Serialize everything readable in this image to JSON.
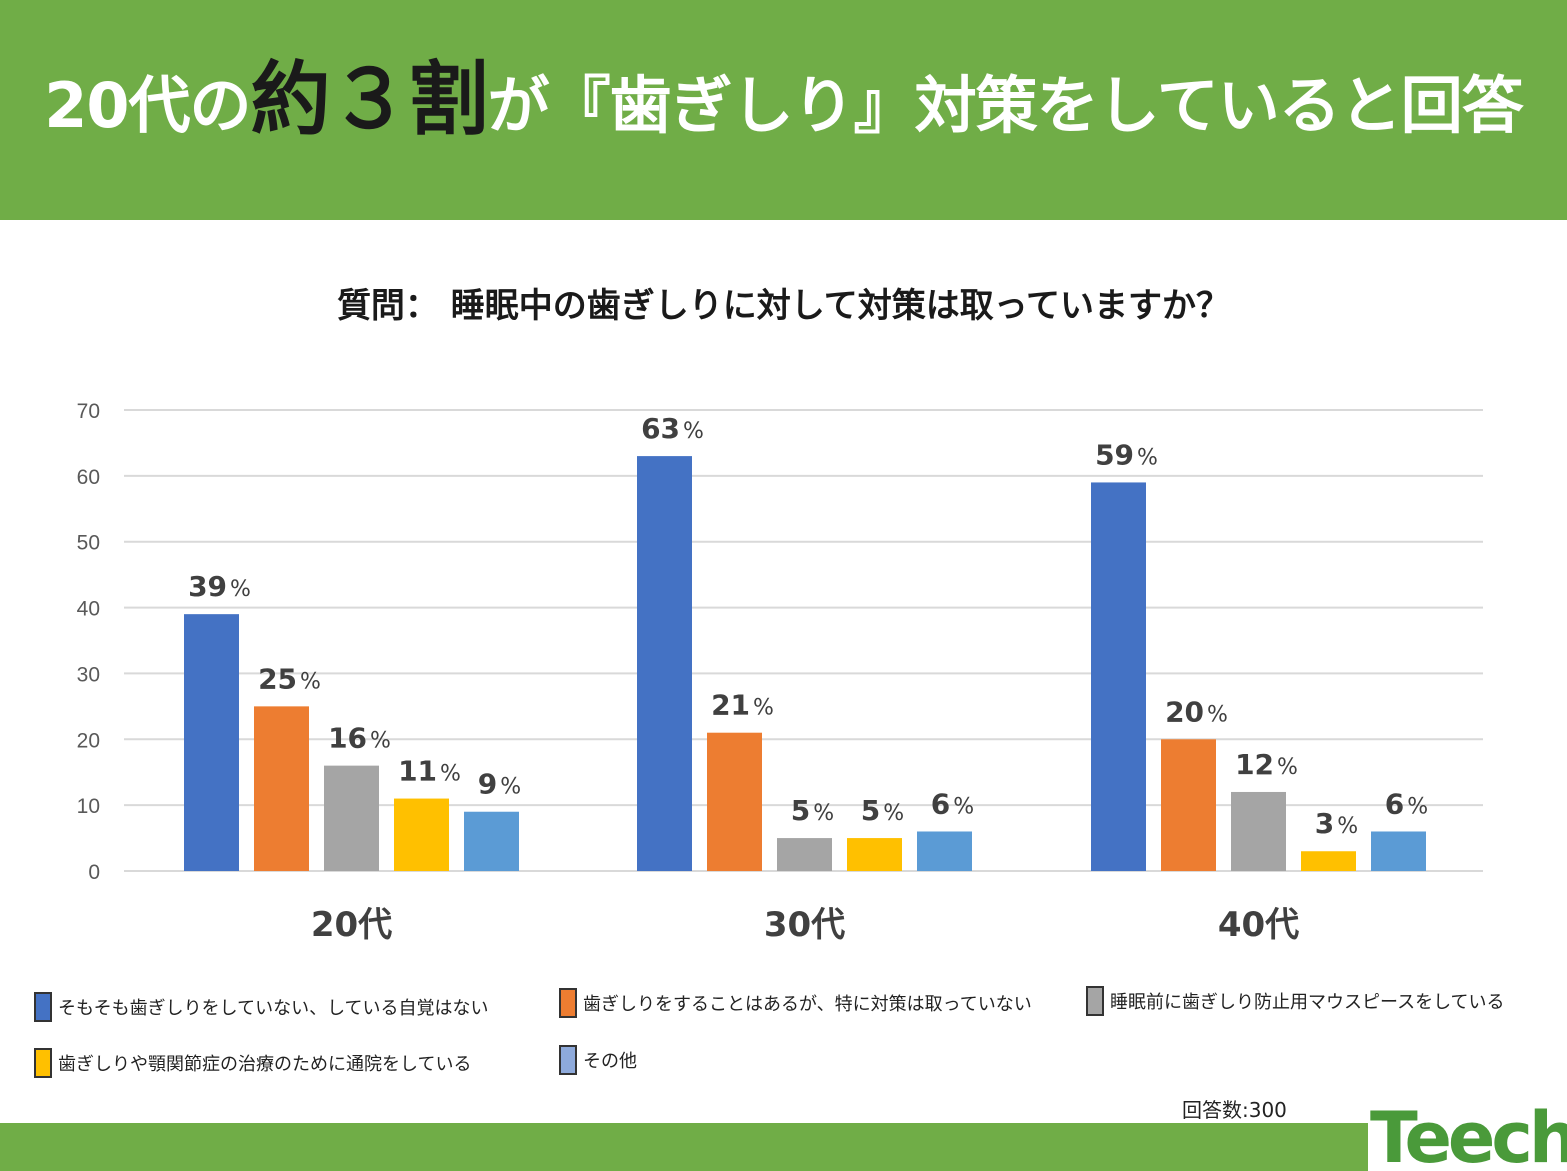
{
  "header": {
    "title_pre": "20代の",
    "title_highlight": "約３割",
    "title_post": "が『歯ぎしり』対策をしていると回答"
  },
  "respondents": "回答数:300",
  "logo": {
    "text": "Teech"
  },
  "colors": {
    "header_bg": "#70ad47",
    "series": [
      "#4472c4",
      "#ed7d31",
      "#a5a5a5",
      "#ffc000",
      "#5b9bd5"
    ]
  },
  "chart_data": {
    "type": "bar",
    "title": "質問： 睡眠中の歯ぎしりに対して対策は取っていますか？",
    "categories": [
      "20代",
      "30代",
      "40代"
    ],
    "ylim": [
      0,
      70
    ],
    "yticks": [
      "0",
      "10",
      "20",
      "30",
      "40",
      "50",
      "60",
      "70"
    ],
    "grid": true,
    "unit": "%",
    "legend_position": "bottom",
    "series": [
      {
        "name": "そもそも歯ぎしりをしていない、している自覚はない",
        "values": [
          39,
          63,
          59
        ],
        "labels": [
          "39",
          "63",
          "59"
        ]
      },
      {
        "name": "歯ぎしりをすることはあるが、特に対策は取っていない",
        "values": [
          25,
          21,
          20
        ],
        "labels": [
          "25",
          "21",
          "20"
        ]
      },
      {
        "name": "睡眠前に歯ぎしり防止用マウスピースをしている",
        "values": [
          16,
          5,
          12
        ],
        "labels": [
          "16",
          "5",
          "12"
        ]
      },
      {
        "name": "歯ぎしりや顎関節症の治療のために通院をしている",
        "values": [
          11,
          5,
          3
        ],
        "labels": [
          "11",
          "5",
          "3"
        ]
      },
      {
        "name": "その他",
        "values": [
          9,
          6,
          6
        ],
        "labels": [
          "9",
          "6",
          "6"
        ]
      }
    ]
  }
}
